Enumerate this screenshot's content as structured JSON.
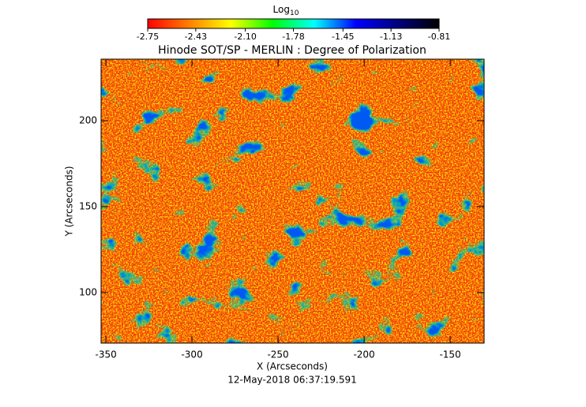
{
  "chart_data": {
    "type": "heatmap",
    "title": "Hinode SOT/SP - MERLIN : Degree of Polarization",
    "x_label": "X (Arcseconds)",
    "y_label": "Y (Arcseconds)",
    "footer": "12-May-2018 06:37:19.591",
    "colorbar_title": "Log",
    "colorbar_title_subscript": "10",
    "clim": [
      -2.75,
      -0.81
    ],
    "cticks": [
      -2.75,
      -2.43,
      {
        "value": -2.1,
        "label": "-2.10"
      },
      -1.78,
      -1.45,
      -1.13,
      -0.81
    ],
    "colormap": [
      "#ff0000",
      "#ff8000",
      "#ffff00",
      "#00ff00",
      "#00ffff",
      "#0000ff",
      "#000080",
      "#000000"
    ],
    "xlim": [
      -352.8,
      -130.3
    ],
    "xticks": [
      -350,
      -300,
      -250,
      -200,
      -150
    ],
    "ylim": [
      70.6,
      235.8
    ],
    "yticks": [
      100,
      150,
      200
    ]
  }
}
